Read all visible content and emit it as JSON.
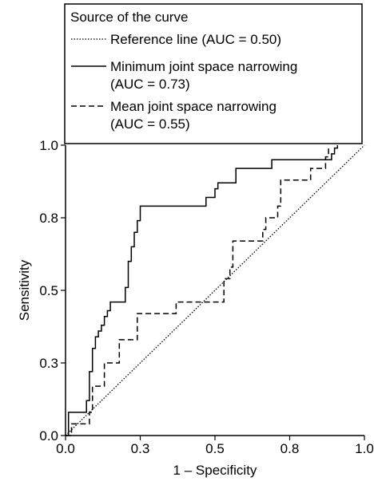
{
  "chart_data": {
    "type": "line",
    "title": "",
    "xlabel": "1 – Specificity",
    "ylabel": "Sensitivity",
    "xlim": [
      0,
      1
    ],
    "ylim": [
      0,
      1
    ],
    "x_ticks": [
      "0.0",
      "0.3",
      "0.5",
      "0.8",
      "1.0"
    ],
    "y_ticks": [
      "0.0",
      "0.3",
      "0.5",
      "0.8",
      "1.0"
    ],
    "grid": false,
    "legend_title": "Source of the curve",
    "legend_position": "top-left",
    "series": [
      {
        "name": "Reference line (AUC = 0.50)",
        "legend_lines": [
          "Reference line (AUC = 0.50)"
        ],
        "style": "dotted",
        "points": [
          [
            0,
            0
          ],
          [
            1,
            1
          ]
        ]
      },
      {
        "name": "Minimum joint space narrowing (AUC = 0.73)",
        "legend_lines": [
          "Minimum joint space narrowing",
          "(AUC = 0.73)"
        ],
        "style": "solid",
        "points": [
          [
            0,
            0
          ],
          [
            0.01,
            0
          ],
          [
            0.01,
            0.08
          ],
          [
            0.07,
            0.08
          ],
          [
            0.07,
            0.12
          ],
          [
            0.08,
            0.12
          ],
          [
            0.08,
            0.22
          ],
          [
            0.09,
            0.22
          ],
          [
            0.09,
            0.3
          ],
          [
            0.1,
            0.3
          ],
          [
            0.1,
            0.34
          ],
          [
            0.11,
            0.34
          ],
          [
            0.11,
            0.36
          ],
          [
            0.12,
            0.36
          ],
          [
            0.12,
            0.38
          ],
          [
            0.13,
            0.38
          ],
          [
            0.13,
            0.41
          ],
          [
            0.14,
            0.41
          ],
          [
            0.14,
            0.43
          ],
          [
            0.15,
            0.43
          ],
          [
            0.15,
            0.46
          ],
          [
            0.2,
            0.46
          ],
          [
            0.2,
            0.51
          ],
          [
            0.21,
            0.51
          ],
          [
            0.21,
            0.6
          ],
          [
            0.22,
            0.6
          ],
          [
            0.22,
            0.65
          ],
          [
            0.23,
            0.65
          ],
          [
            0.23,
            0.7
          ],
          [
            0.24,
            0.7
          ],
          [
            0.24,
            0.74
          ],
          [
            0.25,
            0.74
          ],
          [
            0.25,
            0.79
          ],
          [
            0.47,
            0.79
          ],
          [
            0.47,
            0.82
          ],
          [
            0.5,
            0.82
          ],
          [
            0.5,
            0.85
          ],
          [
            0.51,
            0.85
          ],
          [
            0.51,
            0.87
          ],
          [
            0.57,
            0.87
          ],
          [
            0.57,
            0.92
          ],
          [
            0.69,
            0.92
          ],
          [
            0.69,
            0.95
          ],
          [
            0.89,
            0.95
          ],
          [
            0.89,
            0.97
          ],
          [
            0.9,
            0.97
          ],
          [
            0.9,
            0.99
          ],
          [
            0.91,
            0.99
          ],
          [
            0.91,
            1.0
          ]
        ]
      },
      {
        "name": "Mean joint space narrowing (AUC = 0.55)",
        "legend_lines": [
          "Mean joint space narrowing",
          "(AUC = 0.55)"
        ],
        "style": "dashed",
        "points": [
          [
            0,
            0
          ],
          [
            0.02,
            0
          ],
          [
            0.02,
            0.04
          ],
          [
            0.08,
            0.04
          ],
          [
            0.08,
            0.08
          ],
          [
            0.09,
            0.08
          ],
          [
            0.09,
            0.17
          ],
          [
            0.13,
            0.17
          ],
          [
            0.13,
            0.25
          ],
          [
            0.18,
            0.25
          ],
          [
            0.18,
            0.33
          ],
          [
            0.24,
            0.33
          ],
          [
            0.24,
            0.42
          ],
          [
            0.37,
            0.42
          ],
          [
            0.37,
            0.46
          ],
          [
            0.53,
            0.46
          ],
          [
            0.53,
            0.54
          ],
          [
            0.55,
            0.54
          ],
          [
            0.55,
            0.58
          ],
          [
            0.56,
            0.58
          ],
          [
            0.56,
            0.67
          ],
          [
            0.66,
            0.67
          ],
          [
            0.66,
            0.71
          ],
          [
            0.67,
            0.71
          ],
          [
            0.67,
            0.75
          ],
          [
            0.71,
            0.75
          ],
          [
            0.71,
            0.79
          ],
          [
            0.72,
            0.79
          ],
          [
            0.72,
            0.88
          ],
          [
            0.82,
            0.88
          ],
          [
            0.82,
            0.92
          ],
          [
            0.87,
            0.92
          ],
          [
            0.87,
            0.96
          ],
          [
            0.88,
            0.96
          ],
          [
            0.88,
            1.0
          ]
        ]
      }
    ]
  }
}
